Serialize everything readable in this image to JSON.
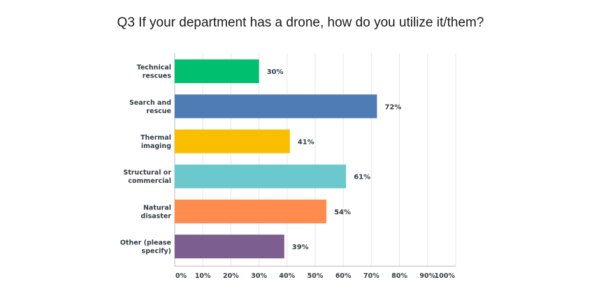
{
  "chart_data": {
    "type": "bar",
    "orientation": "horizontal",
    "title": "Q3 If your department has a drone, how do you utilize it/them?",
    "categories": [
      [
        "Technical",
        "rescues"
      ],
      [
        "Search and",
        "rescue"
      ],
      [
        "Thermal",
        "imaging"
      ],
      [
        "Structural or",
        "commercial"
      ],
      [
        "Natural",
        "disaster"
      ],
      [
        "Other (please",
        "specify)"
      ]
    ],
    "values": [
      30,
      72,
      41,
      61,
      54,
      39
    ],
    "value_labels": [
      "30%",
      "72%",
      "41%",
      "61%",
      "54%",
      "39%"
    ],
    "colors": [
      "#00bf6f",
      "#507cb6",
      "#f9be00",
      "#6bc8cd",
      "#ff8b4f",
      "#7d5e90"
    ],
    "xlim": [
      0,
      100
    ],
    "x_ticks": [
      "0%",
      "10%",
      "20%",
      "30%",
      "40%",
      "50%",
      "60%",
      "70%",
      "80%",
      "90%",
      "100%"
    ],
    "grid": true,
    "legend": "none"
  }
}
